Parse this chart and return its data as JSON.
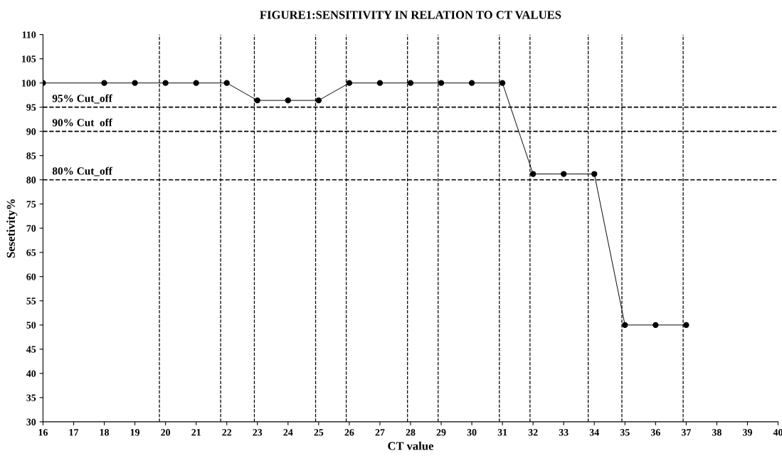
{
  "chart_data": {
    "type": "line",
    "title": "FIGURE1:SENSITIVITY IN RELATION TO CT VALUES",
    "xlabel": "CT value",
    "ylabel": "Sesetivity%",
    "x": [
      16,
      18,
      19,
      20,
      21,
      22,
      23,
      24,
      25,
      26,
      27,
      28,
      29,
      30,
      31,
      32,
      33,
      34,
      35,
      36,
      37
    ],
    "series": [
      {
        "color": "#000000",
        "values": [
          100,
          100,
          100,
          100,
          100,
          100,
          96.4,
          96.4,
          96.4,
          100,
          100,
          100,
          100,
          100,
          100,
          81.2,
          81.2,
          81.2,
          50,
          50,
          50
        ]
      }
    ],
    "marker": "circle",
    "line_style": "solid",
    "grid": false,
    "legend": false,
    "xlim": [
      16,
      40
    ],
    "xticks": [
      16,
      17,
      18,
      19,
      20,
      21,
      22,
      23,
      24,
      25,
      26,
      27,
      28,
      29,
      30,
      31,
      32,
      33,
      34,
      35,
      36,
      37,
      38,
      39,
      40
    ],
    "ylim": [
      30,
      110
    ],
    "yticks": [
      30,
      35,
      40,
      45,
      50,
      55,
      60,
      65,
      70,
      75,
      80,
      85,
      90,
      95,
      100,
      105,
      110
    ],
    "ref_lines": [
      {
        "axis": "y",
        "value": 95,
        "label": "95% Cut_off",
        "line_style": "dashed",
        "color": "#000000"
      },
      {
        "axis": "y",
        "value": 90,
        "label": "90% Cut  off",
        "line_style": "dashed",
        "color": "#000000"
      },
      {
        "axis": "y",
        "value": 80,
        "label": "80% Cut_off",
        "line_style": "dashed",
        "color": "#000000"
      },
      {
        "axis": "x",
        "value": 19.8,
        "line_style": "dashed",
        "color": "#000000"
      },
      {
        "axis": "x",
        "value": 21.8,
        "line_style": "dashed",
        "color": "#000000"
      },
      {
        "axis": "x",
        "value": 22.9,
        "line_style": "dashed",
        "color": "#000000"
      },
      {
        "axis": "x",
        "value": 24.9,
        "line_style": "dashed",
        "color": "#000000"
      },
      {
        "axis": "x",
        "value": 25.9,
        "line_style": "dashed",
        "color": "#000000"
      },
      {
        "axis": "x",
        "value": 27.9,
        "line_style": "dashed",
        "color": "#000000"
      },
      {
        "axis": "x",
        "value": 28.9,
        "line_style": "dashed",
        "color": "#000000"
      },
      {
        "axis": "x",
        "value": 30.9,
        "line_style": "dashed",
        "color": "#000000"
      },
      {
        "axis": "x",
        "value": 31.9,
        "line_style": "dashed",
        "color": "#000000"
      },
      {
        "axis": "x",
        "value": 33.8,
        "line_style": "dashed",
        "color": "#000000"
      },
      {
        "axis": "x",
        "value": 34.9,
        "line_style": "dashed",
        "color": "#000000"
      },
      {
        "axis": "x",
        "value": 36.9,
        "line_style": "dashed",
        "color": "#000000"
      }
    ]
  }
}
